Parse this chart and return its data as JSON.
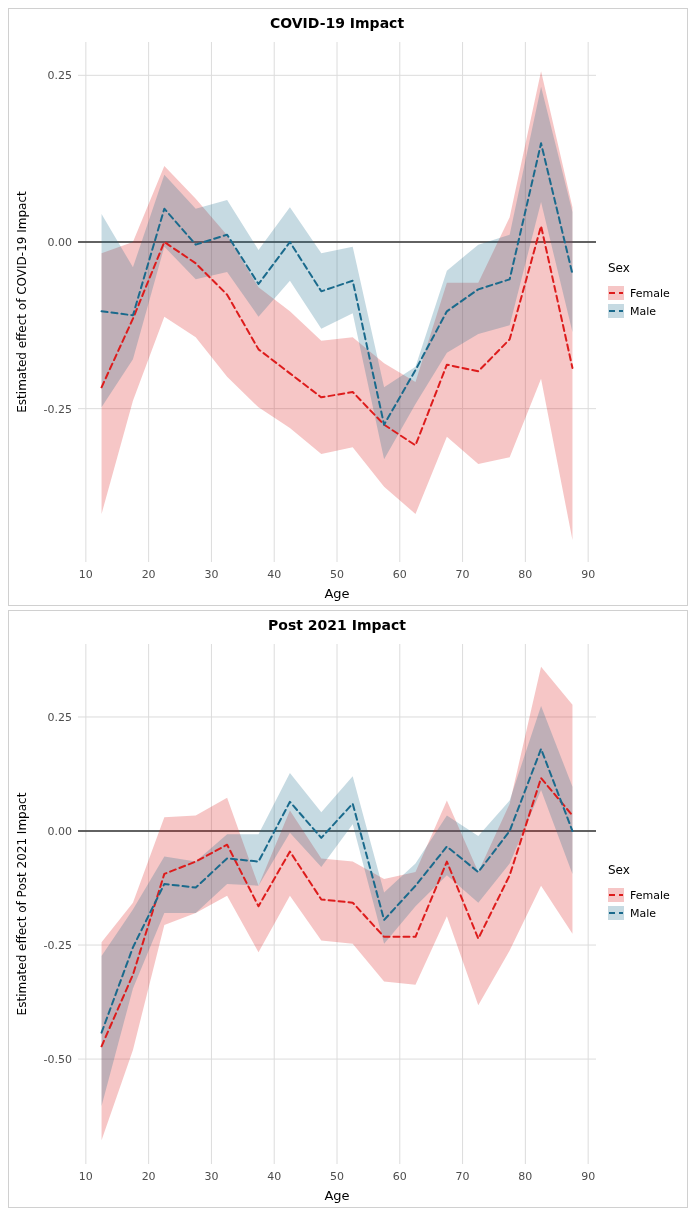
{
  "chart_data": [
    {
      "type": "line",
      "title": "COVID-19 Impact",
      "xlabel": "Age",
      "ylabel": "Estimated effect of COVID-19 Impact",
      "legend_title": "Sex",
      "legend": "right",
      "grid": true,
      "line_style": "dashed",
      "x": [
        12.5,
        17.5,
        22.5,
        27.5,
        32.5,
        37.5,
        42.5,
        47.5,
        52.5,
        57.5,
        62.5,
        67.5,
        72.5,
        77.5,
        82.5,
        87.5
      ],
      "xlim": [
        8.75,
        91.25
      ],
      "xticks": [
        10,
        20,
        30,
        40,
        50,
        60,
        70,
        80,
        90
      ],
      "ylim": [
        -0.48,
        0.3
      ],
      "yticks": [
        {
          "value": 0.25,
          "label": "0.25"
        },
        {
          "value": 0,
          "label": "0.00"
        },
        {
          "value": -0.25,
          "label": "-0.25"
        }
      ],
      "ref_lines": [
        {
          "axis": "y",
          "value": 0,
          "color": "#333333"
        }
      ],
      "series": [
        {
          "name": "Female",
          "color": "#dd1c1c",
          "values": [
            -0.218,
            -0.115,
            0.0,
            -0.032,
            -0.079,
            -0.161,
            -0.197,
            -0.233,
            -0.225,
            -0.274,
            -0.305,
            -0.184,
            -0.194,
            -0.146,
            0.024,
            -0.189
          ],
          "lower": [
            -0.408,
            -0.238,
            -0.112,
            -0.143,
            -0.202,
            -0.248,
            -0.279,
            -0.318,
            -0.308,
            -0.367,
            -0.408,
            -0.292,
            -0.333,
            -0.323,
            -0.205,
            -0.447
          ],
          "upper": [
            -0.017,
            0.0,
            0.114,
            0.065,
            0.01,
            -0.068,
            -0.104,
            -0.148,
            -0.143,
            -0.182,
            -0.21,
            -0.061,
            -0.061,
            0.037,
            0.256,
            0.052
          ]
        },
        {
          "name": "Male",
          "color": "#1a6a8c",
          "values": [
            -0.104,
            -0.11,
            0.05,
            -0.004,
            0.011,
            -0.063,
            0.0,
            -0.074,
            -0.058,
            -0.274,
            -0.192,
            -0.104,
            -0.071,
            -0.056,
            0.148,
            -0.048
          ],
          "lower": [
            -0.248,
            -0.176,
            -0.007,
            -0.056,
            -0.045,
            -0.112,
            -0.058,
            -0.13,
            -0.107,
            -0.326,
            -0.243,
            -0.166,
            -0.138,
            -0.125,
            0.06,
            -0.135
          ],
          "upper": [
            0.042,
            -0.038,
            0.101,
            0.05,
            0.063,
            -0.012,
            0.052,
            -0.017,
            -0.007,
            -0.218,
            -0.187,
            -0.043,
            -0.004,
            0.011,
            0.233,
            0.045
          ]
        }
      ]
    },
    {
      "type": "line",
      "title": "Post 2021 Impact",
      "xlabel": "Age",
      "ylabel": "Estimated effect of Post 2021 Impact",
      "legend_title": "Sex",
      "legend": "right",
      "grid": true,
      "line_style": "dashed",
      "x": [
        12.5,
        17.5,
        22.5,
        27.5,
        32.5,
        37.5,
        42.5,
        47.5,
        52.5,
        57.5,
        62.5,
        67.5,
        72.5,
        77.5,
        82.5,
        87.5
      ],
      "xlim": [
        8.75,
        91.25
      ],
      "xticks": [
        10,
        20,
        30,
        40,
        50,
        60,
        70,
        80,
        90
      ],
      "ylim": [
        -0.73,
        0.41
      ],
      "yticks": [
        {
          "value": 0.25,
          "label": "0.25"
        },
        {
          "value": 0,
          "label": "0.00"
        },
        {
          "value": -0.25,
          "label": "-0.25"
        },
        {
          "value": -0.5,
          "label": "-0.50"
        }
      ],
      "ref_lines": [
        {
          "axis": "y",
          "value": 0,
          "color": "#333333"
        }
      ],
      "series": [
        {
          "name": "Female",
          "color": "#dd1c1c",
          "values": [
            -0.472,
            -0.315,
            -0.094,
            -0.067,
            -0.03,
            -0.165,
            -0.045,
            -0.15,
            -0.157,
            -0.232,
            -0.232,
            -0.067,
            -0.236,
            -0.097,
            0.116,
            0.034
          ],
          "lower": [
            -0.678,
            -0.48,
            -0.206,
            -0.18,
            -0.142,
            -0.266,
            -0.142,
            -0.24,
            -0.247,
            -0.33,
            -0.337,
            -0.187,
            -0.382,
            -0.262,
            -0.12,
            -0.225
          ],
          "upper": [
            -0.244,
            -0.157,
            0.03,
            0.034,
            0.073,
            -0.12,
            0.045,
            -0.06,
            -0.067,
            -0.105,
            -0.09,
            0.067,
            -0.09,
            0.06,
            0.36,
            0.277
          ]
        },
        {
          "name": "Male",
          "color": "#1a6a8c",
          "values": [
            -0.442,
            -0.255,
            -0.116,
            -0.124,
            -0.06,
            -0.067,
            0.064,
            -0.015,
            0.06,
            -0.195,
            -0.12,
            -0.034,
            -0.09,
            0.0,
            0.18,
            0.0
          ],
          "lower": [
            -0.603,
            -0.345,
            -0.18,
            -0.18,
            -0.116,
            -0.12,
            -0.004,
            -0.079,
            0.015,
            -0.247,
            -0.165,
            -0.097,
            -0.157,
            -0.071,
            0.09,
            -0.094
          ],
          "upper": [
            -0.274,
            -0.172,
            -0.056,
            -0.067,
            -0.007,
            -0.007,
            0.127,
            0.041,
            0.12,
            -0.135,
            -0.071,
            0.034,
            -0.011,
            0.067,
            0.274,
            0.097
          ]
        }
      ]
    }
  ]
}
